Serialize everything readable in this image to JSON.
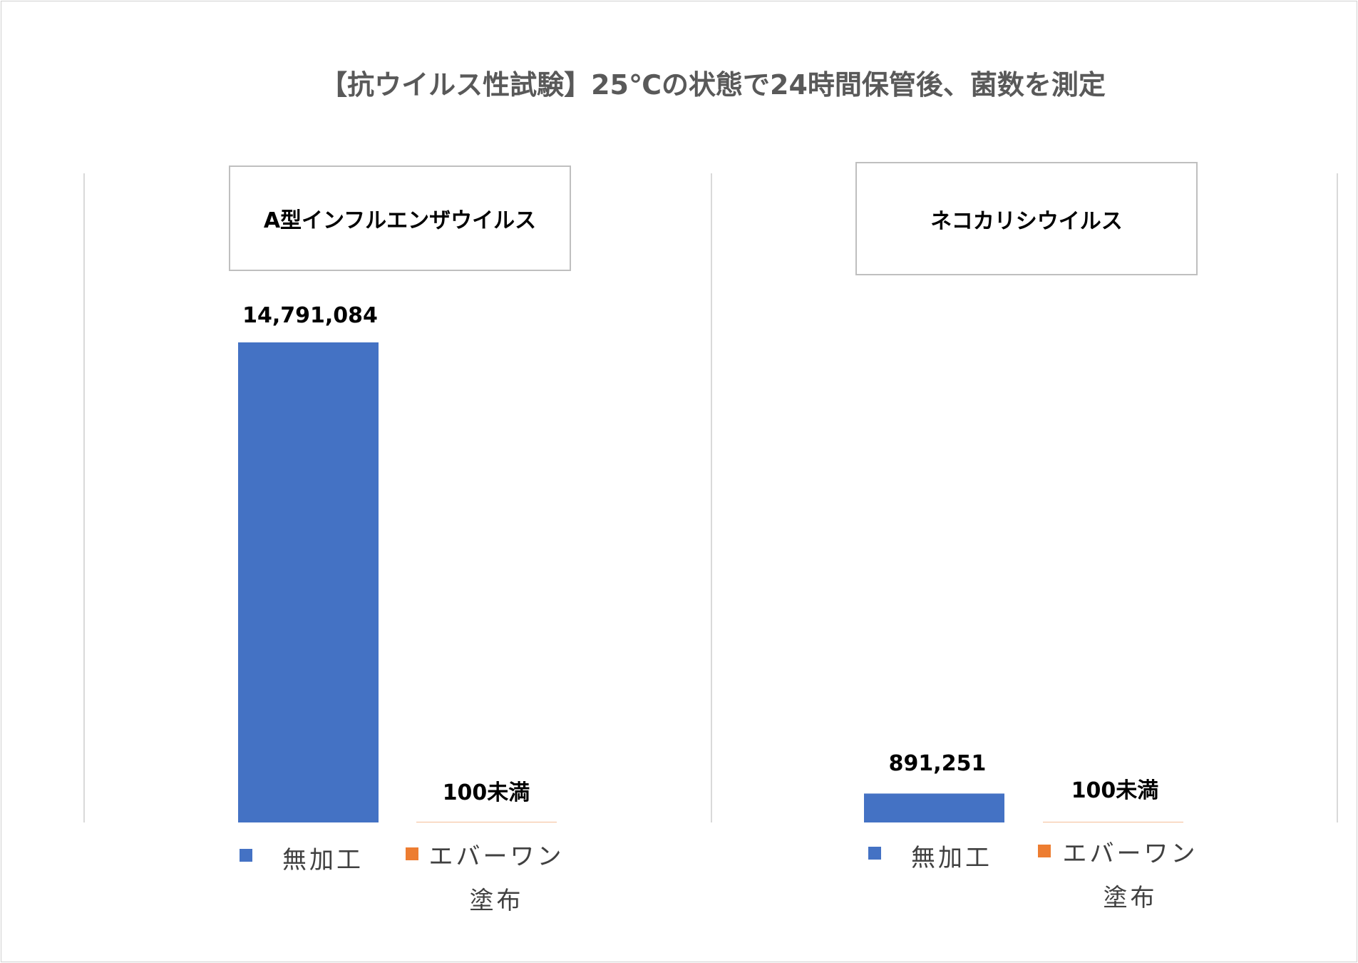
{
  "chart_data": {
    "title": "【抗ウイルス性試験】25℃の状態で24時間保管後、菌数を測定",
    "type": "bar",
    "colors": {
      "series_0": "#4472C4",
      "series_1": "#ED7D31"
    },
    "panels": [
      {
        "title": "A型インフルエンザウイルス",
        "categories": [
          "無加工",
          "エバーワン塗布"
        ],
        "series": [
          {
            "name": "無加工",
            "value": 14791084,
            "label": "14,791,084"
          },
          {
            "name": "エバーワン塗布",
            "value": 100,
            "label": "100未満"
          }
        ],
        "ylim": [
          0,
          14791084
        ]
      },
      {
        "title": "ネコカリシウイルス",
        "categories": [
          "無加工",
          "エバーワン塗布"
        ],
        "series": [
          {
            "name": "無加工",
            "value": 891251,
            "label": "891,251"
          },
          {
            "name": "エバーワン塗布",
            "value": 100,
            "label": "100未満"
          }
        ],
        "ylim": [
          0,
          14791084
        ]
      }
    ],
    "legend": "bottom"
  }
}
